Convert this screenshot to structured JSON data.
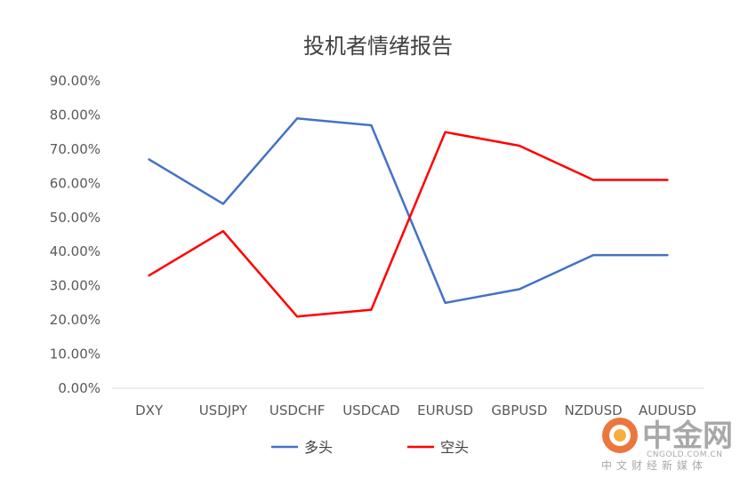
{
  "chart_data": {
    "type": "line",
    "title": "投机者情绪报告",
    "categories": [
      "DXY",
      "USDJPY",
      "USDCHF",
      "USDCAD",
      "EURUSD",
      "GBPUSD",
      "NZDUSD",
      "AUDUSD"
    ],
    "y_ticks": [
      "0.00%",
      "10.00%",
      "20.00%",
      "30.00%",
      "40.00%",
      "50.00%",
      "60.00%",
      "70.00%",
      "80.00%",
      "90.00%"
    ],
    "ylim": [
      0,
      90
    ],
    "y_unit": "%",
    "grid": false,
    "legend_position": "bottom",
    "series": [
      {
        "name": "多头",
        "color": "#4472C4",
        "values": [
          67,
          54,
          79,
          77,
          25,
          29,
          39,
          39
        ]
      },
      {
        "name": "空头",
        "color": "#FF0000",
        "values": [
          33,
          46,
          21,
          23,
          75,
          71,
          61,
          61
        ]
      }
    ]
  },
  "watermark": {
    "brand": "中金网",
    "domain": "CNGOLD.COM.CN",
    "tagline": "中文财经新媒体",
    "logo_color": "#E8601C"
  }
}
